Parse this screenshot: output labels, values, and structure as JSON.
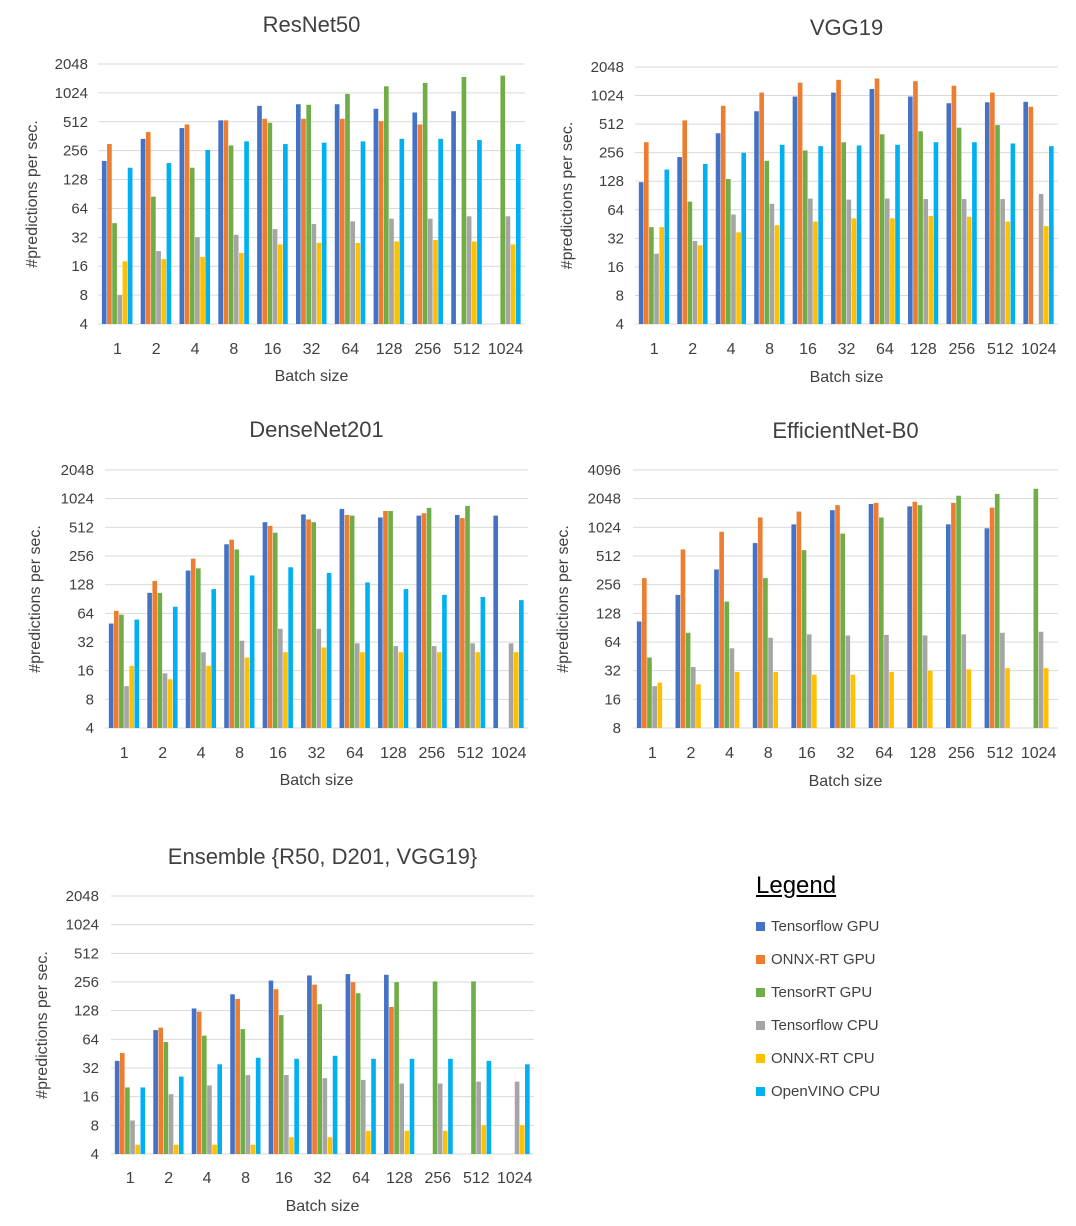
{
  "legend": {
    "title": "Legend",
    "series": [
      {
        "name": "Tensorflow GPU",
        "color": "#4472C4"
      },
      {
        "name": "ONNX-RT GPU",
        "color": "#ED7D31"
      },
      {
        "name": "TensorRT GPU",
        "color": "#70AD47"
      },
      {
        "name": "Tensorflow CPU",
        "color": "#A5A5A5"
      },
      {
        "name": "ONNX-RT CPU",
        "color": "#FFC000"
      },
      {
        "name": "OpenVINO CPU",
        "color": "#00B0F0"
      }
    ]
  },
  "chart_data": [
    {
      "type": "bar",
      "title": "ResNet50",
      "xlabel": "Batch size",
      "ylabel": "#predictions per sec.",
      "yscale": "log2",
      "ylim": [
        4,
        2048
      ],
      "yticks": [
        4,
        8,
        16,
        32,
        64,
        128,
        256,
        512,
        1024,
        2048
      ],
      "grid": true,
      "categories": [
        "1",
        "2",
        "4",
        "8",
        "16",
        "32",
        "64",
        "128",
        "256",
        "512",
        "1024"
      ],
      "series": [
        {
          "name": "Tensorflow GPU",
          "values": [
            200,
            340,
            440,
            530,
            750,
            780,
            780,
            700,
            640,
            660,
            null
          ]
        },
        {
          "name": "ONNX-RT GPU",
          "values": [
            300,
            400,
            480,
            530,
            550,
            550,
            550,
            520,
            480,
            null,
            null
          ]
        },
        {
          "name": "TensorRT GPU",
          "values": [
            45,
            85,
            170,
            290,
            500,
            770,
            1000,
            1200,
            1300,
            1500,
            1550
          ]
        },
        {
          "name": "Tensorflow CPU",
          "values": [
            8,
            23,
            32,
            34,
            39,
            44,
            47,
            50,
            50,
            53,
            53
          ]
        },
        {
          "name": "ONNX-RT CPU",
          "values": [
            18,
            19,
            20,
            22,
            27,
            28,
            28,
            29,
            30,
            29,
            27
          ]
        },
        {
          "name": "OpenVINO CPU",
          "values": [
            170,
            190,
            260,
            320,
            300,
            310,
            320,
            340,
            340,
            330,
            300
          ]
        }
      ]
    },
    {
      "type": "bar",
      "title": "VGG19",
      "xlabel": "Batch size",
      "ylabel": "#predictions per sec.",
      "yscale": "log2",
      "ylim": [
        4,
        2048
      ],
      "yticks": [
        4,
        8,
        16,
        32,
        64,
        128,
        256,
        512,
        1024,
        2048
      ],
      "grid": true,
      "categories": [
        "1",
        "2",
        "4",
        "8",
        "16",
        "32",
        "64",
        "128",
        "256",
        "512",
        "1024"
      ],
      "series": [
        {
          "name": "Tensorflow GPU",
          "values": [
            125,
            230,
            410,
            700,
            1000,
            1100,
            1200,
            1000,
            850,
            870,
            880
          ]
        },
        {
          "name": "ONNX-RT GPU",
          "values": [
            330,
            560,
            800,
            1100,
            1400,
            1500,
            1550,
            1450,
            1300,
            1100,
            780
          ]
        },
        {
          "name": "TensorRT GPU",
          "values": [
            42,
            78,
            135,
            210,
            270,
            330,
            400,
            430,
            470,
            500,
            null
          ]
        },
        {
          "name": "Tensorflow CPU",
          "values": [
            22,
            30,
            57,
            74,
            84,
            82,
            84,
            83,
            83,
            83,
            94
          ]
        },
        {
          "name": "ONNX-RT CPU",
          "values": [
            42,
            27,
            37,
            44,
            48,
            52,
            52,
            55,
            54,
            48,
            43
          ]
        },
        {
          "name": "OpenVINO CPU",
          "values": [
            170,
            195,
            255,
            310,
            300,
            305,
            310,
            330,
            330,
            320,
            300
          ]
        }
      ]
    },
    {
      "type": "bar",
      "title": "DenseNet201",
      "xlabel": "Batch size",
      "ylabel": "#predictions per sec.",
      "yscale": "log2",
      "ylim": [
        4,
        2048
      ],
      "yticks": [
        4,
        8,
        16,
        32,
        64,
        128,
        256,
        512,
        1024,
        2048
      ],
      "grid": true,
      "categories": [
        "1",
        "2",
        "4",
        "8",
        "16",
        "32",
        "64",
        "128",
        "256",
        "512",
        "1024"
      ],
      "series": [
        {
          "name": "Tensorflow GPU",
          "values": [
            50,
            105,
            180,
            340,
            580,
            700,
            800,
            650,
            680,
            690,
            680
          ]
        },
        {
          "name": "ONNX-RT GPU",
          "values": [
            68,
            140,
            240,
            380,
            530,
            620,
            690,
            760,
            720,
            640,
            null
          ]
        },
        {
          "name": "TensorRT GPU",
          "values": [
            62,
            105,
            190,
            300,
            450,
            580,
            680,
            760,
            820,
            860,
            null
          ]
        },
        {
          "name": "Tensorflow CPU",
          "values": [
            11,
            15,
            25,
            33,
            44,
            44,
            31,
            29,
            29,
            31,
            31
          ]
        },
        {
          "name": "ONNX-RT CPU",
          "values": [
            18,
            13,
            18,
            22,
            25,
            28,
            25,
            25,
            25,
            25,
            25
          ]
        },
        {
          "name": "OpenVINO CPU",
          "values": [
            55,
            75,
            115,
            160,
            195,
            170,
            135,
            115,
            100,
            95,
            88
          ]
        }
      ]
    },
    {
      "type": "bar",
      "title": "EfficientNet-B0",
      "xlabel": "Batch size",
      "ylabel": "#predictions per sec.",
      "yscale": "log2",
      "ylim": [
        8,
        4096
      ],
      "yticks": [
        8,
        16,
        32,
        64,
        128,
        256,
        512,
        1024,
        2048,
        4096
      ],
      "grid": true,
      "categories": [
        "1",
        "2",
        "4",
        "8",
        "16",
        "32",
        "64",
        "128",
        "256",
        "512",
        "1024"
      ],
      "series": [
        {
          "name": "Tensorflow GPU",
          "values": [
            105,
            200,
            370,
            700,
            1100,
            1550,
            1800,
            1700,
            1100,
            1000,
            null
          ]
        },
        {
          "name": "ONNX-RT GPU",
          "values": [
            300,
            600,
            920,
            1300,
            1500,
            1750,
            1850,
            1900,
            1850,
            1650,
            null
          ]
        },
        {
          "name": "TensorRT GPU",
          "values": [
            44,
            80,
            170,
            300,
            590,
            880,
            1300,
            1750,
            2200,
            2300,
            2600
          ]
        },
        {
          "name": "Tensorflow CPU",
          "values": [
            22,
            35,
            55,
            71,
            77,
            75,
            76,
            75,
            77,
            80,
            82
          ]
        },
        {
          "name": "ONNX-RT CPU",
          "values": [
            24,
            23,
            31,
            31,
            29,
            29,
            31,
            32,
            33,
            34,
            34
          ]
        },
        {
          "name": "OpenVINO CPU",
          "values": [
            null,
            null,
            null,
            null,
            null,
            null,
            null,
            null,
            null,
            null,
            null
          ]
        }
      ]
    },
    {
      "type": "bar",
      "title": "Ensemble {R50, D201, VGG19}",
      "xlabel": "Batch size",
      "ylabel": "#predictions per sec.",
      "yscale": "log2",
      "ylim": [
        4,
        2048
      ],
      "yticks": [
        4,
        8,
        16,
        32,
        64,
        128,
        256,
        512,
        1024,
        2048
      ],
      "grid": true,
      "categories": [
        "1",
        "2",
        "4",
        "8",
        "16",
        "32",
        "64",
        "128",
        "256",
        "512",
        "1024"
      ],
      "series": [
        {
          "name": "Tensorflow GPU",
          "values": [
            38,
            80,
            135,
            190,
            265,
            300,
            310,
            305,
            null,
            null,
            null
          ]
        },
        {
          "name": "ONNX-RT GPU",
          "values": [
            46,
            85,
            125,
            170,
            215,
            240,
            255,
            140,
            null,
            null,
            null
          ]
        },
        {
          "name": "TensorRT GPU",
          "values": [
            20,
            60,
            70,
            82,
            115,
            150,
            195,
            255,
            260,
            260,
            null
          ]
        },
        {
          "name": "Tensorflow CPU",
          "values": [
            9,
            17,
            21,
            27,
            27,
            25,
            24,
            22,
            22,
            23,
            23
          ]
        },
        {
          "name": "ONNX-RT CPU",
          "values": [
            5,
            5,
            5,
            5,
            6,
            6,
            7,
            7,
            7,
            8,
            8
          ]
        },
        {
          "name": "OpenVINO CPU",
          "values": [
            20,
            26,
            35,
            41,
            40,
            43,
            40,
            40,
            40,
            38,
            35
          ]
        }
      ]
    }
  ]
}
